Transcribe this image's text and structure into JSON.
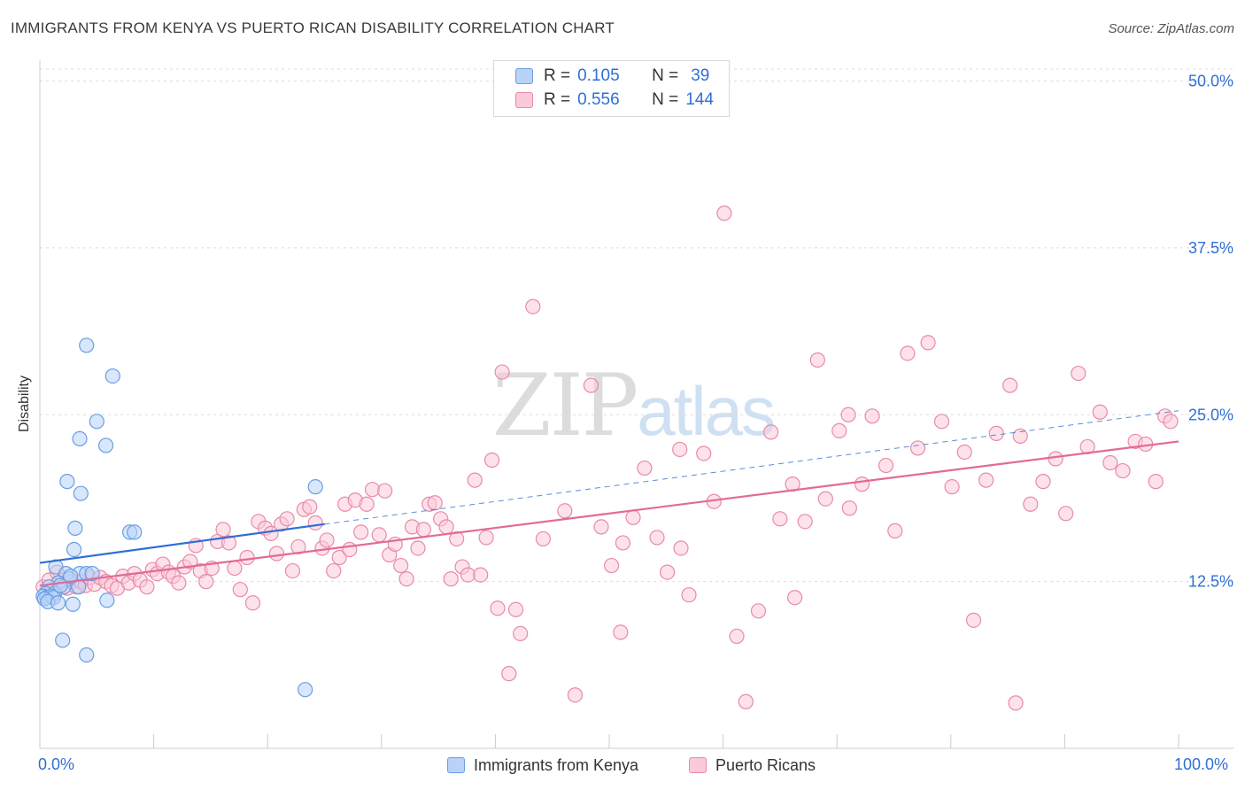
{
  "header": {
    "title": "IMMIGRANTS FROM KENYA VS PUERTO RICAN DISABILITY CORRELATION CHART",
    "source": "Source: ZipAtlas.com"
  },
  "watermark": {
    "zip": "ZIP",
    "atlas": "atlas"
  },
  "legend": {
    "rows": [
      {
        "r_label": "R =",
        "r_value": "0.105",
        "n_label": "N =",
        "n_value": "39"
      },
      {
        "r_label": "R =",
        "r_value": "0.556",
        "n_label": "N =",
        "n_value": "144"
      }
    ]
  },
  "bottom_legend": {
    "kenya": "Immigrants from Kenya",
    "puerto": "Puerto Ricans"
  },
  "axis": {
    "x_min_label": "0.0%",
    "x_max_label": "100.0%"
  },
  "colors": {
    "kenya_fill": "#b8d3f7",
    "kenya_stroke": "#6a9ee3",
    "kenya_line": "#2f6fd6",
    "puerto_fill": "#fbcad9",
    "puerto_stroke": "#e88aa9",
    "puerto_line": "#e36a95",
    "grid": "#dddddd",
    "tick_label": "#2f6fd6"
  },
  "chart_data": {
    "type": "scatter",
    "title": "IMMIGRANTS FROM KENYA VS PUERTO RICAN DISABILITY CORRELATION CHART",
    "xlabel": "",
    "ylabel": "Disability",
    "xlim": [
      0,
      100
    ],
    "ylim": [
      0,
      50.9
    ],
    "y_ticks": [
      12.5,
      25.0,
      37.5,
      50.0
    ],
    "y_tick_labels": [
      "12.5%",
      "25.0%",
      "37.5%",
      "50.0%"
    ],
    "x_tick_labels": [
      "0.0%",
      "100.0%"
    ],
    "grid": true,
    "series": [
      {
        "name": "Immigrants from Kenya",
        "R": 0.105,
        "N": 39,
        "trend": {
          "x0": 0,
          "y0": 13.9,
          "x1": 25,
          "y1": 16.8
        },
        "trend_dashed": {
          "x0": 25,
          "y0": 16.8,
          "x1": 100,
          "y1": 25.3
        },
        "points": [
          [
            4.1,
            30.2
          ],
          [
            6.4,
            27.9
          ],
          [
            5.0,
            24.5
          ],
          [
            3.5,
            23.2
          ],
          [
            5.8,
            22.7
          ],
          [
            2.4,
            20.0
          ],
          [
            3.6,
            19.1
          ],
          [
            24.2,
            19.6
          ],
          [
            3.1,
            16.5
          ],
          [
            7.9,
            16.2
          ],
          [
            8.3,
            16.2
          ],
          [
            3.0,
            14.9
          ],
          [
            1.4,
            13.6
          ],
          [
            2.3,
            13.1
          ],
          [
            3.5,
            13.1
          ],
          [
            4.1,
            13.1
          ],
          [
            4.6,
            13.1
          ],
          [
            2.6,
            12.7
          ],
          [
            1.6,
            12.4
          ],
          [
            0.8,
            12.1
          ],
          [
            2.1,
            12.1
          ],
          [
            3.4,
            12.1
          ],
          [
            1.0,
            11.8
          ],
          [
            0.5,
            11.6
          ],
          [
            1.3,
            11.6
          ],
          [
            0.3,
            11.4
          ],
          [
            0.6,
            11.3
          ],
          [
            1.0,
            11.4
          ],
          [
            1.2,
            11.3
          ],
          [
            0.4,
            11.2
          ],
          [
            0.7,
            11.0
          ],
          [
            1.6,
            10.9
          ],
          [
            2.9,
            10.8
          ],
          [
            5.9,
            11.1
          ],
          [
            2.0,
            8.1
          ],
          [
            4.1,
            7.0
          ],
          [
            23.3,
            4.4
          ],
          [
            1.8,
            12.2
          ],
          [
            2.7,
            12.9
          ]
        ]
      },
      {
        "name": "Puerto Ricans",
        "R": 0.556,
        "N": 144,
        "trend": {
          "x0": 0,
          "y0": 12.2,
          "x1": 100,
          "y1": 23.0
        },
        "points": [
          [
            0.3,
            12.1
          ],
          [
            0.8,
            12.6
          ],
          [
            1.2,
            11.8
          ],
          [
            1.5,
            13.2
          ],
          [
            1.7,
            12.4
          ],
          [
            2.0,
            12.6
          ],
          [
            2.4,
            12.0
          ],
          [
            2.8,
            12.5
          ],
          [
            3.2,
            12.1
          ],
          [
            3.6,
            12.5
          ],
          [
            4.0,
            12.2
          ],
          [
            4.4,
            12.8
          ],
          [
            4.8,
            12.3
          ],
          [
            5.3,
            12.8
          ],
          [
            5.8,
            12.5
          ],
          [
            6.3,
            12.2
          ],
          [
            6.8,
            12.0
          ],
          [
            7.3,
            12.9
          ],
          [
            7.8,
            12.4
          ],
          [
            8.3,
            13.1
          ],
          [
            8.8,
            12.6
          ],
          [
            9.4,
            12.1
          ],
          [
            9.9,
            13.4
          ],
          [
            10.3,
            13.1
          ],
          [
            10.8,
            13.8
          ],
          [
            11.3,
            13.2
          ],
          [
            11.7,
            12.9
          ],
          [
            12.2,
            12.4
          ],
          [
            12.7,
            13.6
          ],
          [
            13.2,
            14.0
          ],
          [
            13.7,
            15.2
          ],
          [
            14.1,
            13.3
          ],
          [
            14.6,
            12.5
          ],
          [
            15.1,
            13.5
          ],
          [
            15.6,
            15.5
          ],
          [
            16.1,
            16.4
          ],
          [
            16.6,
            15.4
          ],
          [
            17.1,
            13.5
          ],
          [
            17.6,
            11.9
          ],
          [
            18.2,
            14.3
          ],
          [
            18.7,
            10.9
          ],
          [
            19.2,
            17.0
          ],
          [
            19.8,
            16.5
          ],
          [
            20.3,
            16.1
          ],
          [
            20.8,
            14.6
          ],
          [
            21.2,
            16.8
          ],
          [
            21.7,
            17.2
          ],
          [
            22.2,
            13.3
          ],
          [
            22.7,
            15.1
          ],
          [
            23.2,
            17.9
          ],
          [
            23.7,
            18.1
          ],
          [
            24.2,
            16.9
          ],
          [
            24.8,
            15.0
          ],
          [
            25.2,
            15.6
          ],
          [
            25.8,
            13.3
          ],
          [
            26.3,
            14.3
          ],
          [
            26.8,
            18.3
          ],
          [
            27.2,
            14.9
          ],
          [
            27.7,
            18.6
          ],
          [
            28.2,
            16.2
          ],
          [
            28.7,
            18.3
          ],
          [
            29.2,
            19.4
          ],
          [
            29.8,
            16.0
          ],
          [
            30.3,
            19.3
          ],
          [
            30.7,
            14.5
          ],
          [
            31.2,
            15.3
          ],
          [
            31.7,
            13.7
          ],
          [
            32.2,
            12.7
          ],
          [
            32.7,
            16.6
          ],
          [
            33.2,
            15.0
          ],
          [
            33.7,
            16.4
          ],
          [
            34.2,
            18.3
          ],
          [
            34.7,
            18.4
          ],
          [
            35.2,
            17.2
          ],
          [
            35.7,
            16.6
          ],
          [
            36.1,
            12.7
          ],
          [
            36.6,
            15.7
          ],
          [
            37.1,
            13.6
          ],
          [
            37.6,
            13.0
          ],
          [
            38.2,
            20.1
          ],
          [
            38.7,
            13.0
          ],
          [
            39.2,
            15.8
          ],
          [
            39.7,
            21.6
          ],
          [
            40.2,
            10.5
          ],
          [
            40.6,
            28.2
          ],
          [
            41.2,
            5.6
          ],
          [
            41.8,
            10.4
          ],
          [
            42.2,
            8.6
          ],
          [
            43.3,
            33.1
          ],
          [
            44.2,
            15.7
          ],
          [
            46.1,
            17.8
          ],
          [
            47.0,
            4.0
          ],
          [
            48.4,
            27.2
          ],
          [
            49.3,
            16.6
          ],
          [
            50.2,
            13.7
          ],
          [
            51.0,
            8.7
          ],
          [
            52.1,
            17.3
          ],
          [
            53.1,
            21.0
          ],
          [
            54.2,
            15.8
          ],
          [
            55.1,
            13.2
          ],
          [
            56.3,
            15.0
          ],
          [
            57.0,
            11.5
          ],
          [
            58.3,
            22.1
          ],
          [
            59.2,
            18.5
          ],
          [
            60.1,
            40.1
          ],
          [
            61.2,
            8.4
          ],
          [
            62.0,
            3.5
          ],
          [
            63.1,
            10.3
          ],
          [
            64.2,
            23.7
          ],
          [
            65.0,
            17.2
          ],
          [
            66.1,
            19.8
          ],
          [
            67.2,
            17.0
          ],
          [
            68.3,
            29.1
          ],
          [
            69.0,
            18.7
          ],
          [
            70.2,
            23.8
          ],
          [
            71.1,
            18.0
          ],
          [
            72.2,
            19.8
          ],
          [
            73.1,
            24.9
          ],
          [
            74.3,
            21.2
          ],
          [
            75.1,
            16.3
          ],
          [
            76.2,
            29.6
          ],
          [
            77.1,
            22.5
          ],
          [
            78.0,
            30.4
          ],
          [
            79.2,
            24.5
          ],
          [
            80.1,
            19.6
          ],
          [
            81.2,
            22.2
          ],
          [
            82.0,
            9.6
          ],
          [
            83.1,
            20.1
          ],
          [
            84.0,
            23.6
          ],
          [
            85.2,
            27.2
          ],
          [
            86.1,
            23.4
          ],
          [
            87.0,
            18.3
          ],
          [
            88.1,
            20.0
          ],
          [
            89.2,
            21.7
          ],
          [
            90.1,
            17.6
          ],
          [
            91.2,
            28.1
          ],
          [
            92.0,
            22.6
          ],
          [
            93.1,
            25.2
          ],
          [
            94.0,
            21.4
          ],
          [
            95.1,
            20.8
          ],
          [
            96.2,
            23.0
          ],
          [
            97.1,
            22.8
          ],
          [
            98.0,
            20.0
          ],
          [
            98.8,
            24.9
          ],
          [
            99.3,
            24.5
          ],
          [
            66.3,
            11.3
          ],
          [
            56.2,
            22.4
          ],
          [
            85.7,
            3.4
          ],
          [
            51.2,
            15.4
          ],
          [
            71.0,
            25.0
          ]
        ]
      }
    ]
  }
}
